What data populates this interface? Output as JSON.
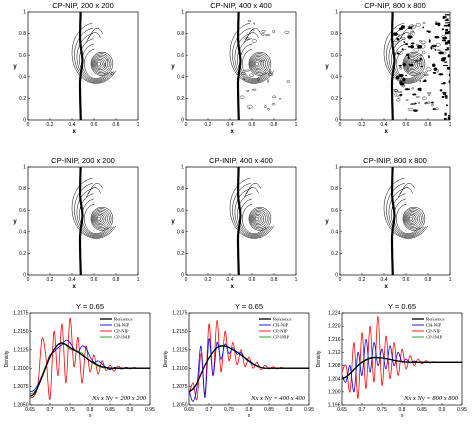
{
  "contour_panels": [
    {
      "title": "CP-NIP, 200 x 200",
      "noise": "low"
    },
    {
      "title": "CP-NIP, 400 x 400",
      "noise": "medium"
    },
    {
      "title": "CP-NIP, 800 x 800",
      "noise": "high"
    },
    {
      "title": "CP-INIP, 200 x 200",
      "noise": "none"
    },
    {
      "title": "CP-INIP, 400 x 400",
      "noise": "none"
    },
    {
      "title": "CP-INIP, 800 x 800",
      "noise": "none"
    }
  ],
  "contour_axes": {
    "xlabel": "x",
    "ylabel": "y",
    "xticks": [
      "0",
      "0.2",
      "0.4",
      "0.6",
      "0.8",
      "1"
    ],
    "yticks": [
      "0",
      "0.2",
      "0.4",
      "0.6",
      "0.8",
      "1"
    ]
  },
  "colors": {
    "reference": "#000000",
    "ch_nip": "#0000ff",
    "cp_nip": "#ff0000",
    "cp_inip": "#00aa00"
  },
  "chart_data": [
    {
      "type": "line",
      "title": "Y = 0.65",
      "xlabel": "x",
      "ylabel": "Density",
      "xlim": [
        0.65,
        0.95
      ],
      "ylim": [
        1.205,
        1.2175
      ],
      "xticks": [
        "0.65",
        "0.7",
        "0.75",
        "0.8",
        "0.85",
        "0.9",
        "0.95"
      ],
      "yticks": [
        "1.2050",
        "1.2075",
        "1.2100",
        "1.2125",
        "1.2150",
        "1.2175"
      ],
      "legend_position": "top-right",
      "annotation": "Nx x Ny = 200 x 200",
      "series": [
        {
          "name": "Reference",
          "key": "reference",
          "x": [
            0.65,
            0.66,
            0.67,
            0.68,
            0.69,
            0.7,
            0.71,
            0.72,
            0.73,
            0.74,
            0.75,
            0.76,
            0.77,
            0.78,
            0.79,
            0.8,
            0.81,
            0.82,
            0.83,
            0.84,
            0.85,
            0.86,
            0.87,
            0.88,
            0.89,
            0.9,
            0.91,
            0.92,
            0.93,
            0.94,
            0.95
          ],
          "y": [
            1.2062,
            1.2065,
            1.2075,
            1.2088,
            1.2102,
            1.2115,
            1.2125,
            1.2132,
            1.2134,
            1.2132,
            1.2128,
            1.2125,
            1.2122,
            1.2118,
            1.2114,
            1.211,
            1.2107,
            1.2104,
            1.2102,
            1.2101,
            1.21,
            1.21,
            1.21,
            1.21,
            1.21,
            1.21,
            1.21,
            1.21,
            1.21,
            1.21,
            1.21
          ]
        },
        {
          "name": "CH-NIP",
          "key": "ch_nip",
          "x": [
            0.65,
            0.66,
            0.67,
            0.68,
            0.69,
            0.7,
            0.71,
            0.72,
            0.73,
            0.74,
            0.75,
            0.76,
            0.77,
            0.78,
            0.79,
            0.8,
            0.81,
            0.82,
            0.83,
            0.84,
            0.85,
            0.86,
            0.87,
            0.88,
            0.89,
            0.9,
            0.91,
            0.92,
            0.93,
            0.94,
            0.95
          ],
          "y": [
            1.2068,
            1.207,
            1.2078,
            1.209,
            1.2104,
            1.2118,
            1.2122,
            1.2128,
            1.2132,
            1.2138,
            1.2135,
            1.2126,
            1.2122,
            1.213,
            1.2127,
            1.2116,
            1.2108,
            1.211,
            1.2106,
            1.2101,
            1.2098,
            1.2101,
            1.21,
            1.2099,
            1.2101,
            1.21,
            1.21,
            1.21,
            1.21,
            1.21,
            1.21
          ]
        },
        {
          "name": "CP-NIP",
          "key": "cp_nip",
          "x": [
            0.65,
            0.66,
            0.67,
            0.68,
            0.69,
            0.7,
            0.71,
            0.72,
            0.73,
            0.74,
            0.75,
            0.76,
            0.77,
            0.78,
            0.79,
            0.8,
            0.81,
            0.82,
            0.83,
            0.84,
            0.85,
            0.86,
            0.87,
            0.88,
            0.89,
            0.9,
            0.91,
            0.92,
            0.93,
            0.94,
            0.95
          ],
          "y": [
            1.206,
            1.2062,
            1.2078,
            1.214,
            1.2115,
            1.2058,
            1.215,
            1.209,
            1.216,
            1.208,
            1.2168,
            1.2102,
            1.2142,
            1.208,
            1.213,
            1.2095,
            1.2118,
            1.2092,
            1.211,
            1.2097,
            1.2104,
            1.2096,
            1.2103,
            1.2099,
            1.2101,
            1.2099,
            1.2101,
            1.21,
            1.21,
            1.21,
            1.21
          ]
        },
        {
          "name": "CP-INIP",
          "key": "cp_inip",
          "x": [
            0.65,
            0.66,
            0.67,
            0.68,
            0.69,
            0.7,
            0.71,
            0.72,
            0.73,
            0.74,
            0.75,
            0.76,
            0.77,
            0.78,
            0.79,
            0.8,
            0.81,
            0.82,
            0.83,
            0.84,
            0.85,
            0.86,
            0.87,
            0.88,
            0.89,
            0.9,
            0.91,
            0.92,
            0.93,
            0.94,
            0.95
          ],
          "y": [
            1.2065,
            1.2067,
            1.2076,
            1.209,
            1.2104,
            1.2116,
            1.2126,
            1.2132,
            1.2135,
            1.2131,
            1.2126,
            1.2124,
            1.2123,
            1.212,
            1.2115,
            1.211,
            1.2106,
            1.2103,
            1.2101,
            1.21,
            1.21,
            1.21,
            1.21,
            1.21,
            1.21,
            1.21,
            1.21,
            1.21,
            1.21,
            1.21,
            1.21
          ]
        }
      ]
    },
    {
      "type": "line",
      "title": "Y = 0.65",
      "xlabel": "x",
      "ylabel": "Density",
      "xlim": [
        0.65,
        0.95
      ],
      "ylim": [
        1.205,
        1.2175
      ],
      "xticks": [
        "0.65",
        "0.7",
        "0.75",
        "0.8",
        "0.85",
        "0.9",
        "0.95"
      ],
      "yticks": [
        "1.2050",
        "1.2075",
        "1.2100",
        "1.2125",
        "1.2150",
        "1.2175"
      ],
      "legend_position": "top-right",
      "annotation": "Nx x Ny = 400 x 400",
      "series": [
        {
          "name": "Reference",
          "key": "reference",
          "x": [
            0.65,
            0.66,
            0.67,
            0.68,
            0.69,
            0.7,
            0.71,
            0.72,
            0.73,
            0.74,
            0.75,
            0.76,
            0.77,
            0.78,
            0.79,
            0.8,
            0.81,
            0.82,
            0.83,
            0.84,
            0.85,
            0.86,
            0.87,
            0.88,
            0.89,
            0.9,
            0.91,
            0.92,
            0.93,
            0.94,
            0.95
          ],
          "y": [
            1.2068,
            1.2072,
            1.208,
            1.2092,
            1.2104,
            1.2114,
            1.2122,
            1.2128,
            1.213,
            1.213,
            1.2128,
            1.2125,
            1.2122,
            1.2118,
            1.2114,
            1.211,
            1.2106,
            1.2103,
            1.2101,
            1.21,
            1.21,
            1.21,
            1.21,
            1.21,
            1.21,
            1.21,
            1.21,
            1.21,
            1.21,
            1.21,
            1.21
          ]
        },
        {
          "name": "CH-NIP",
          "key": "ch_nip",
          "x": [
            0.65,
            0.66,
            0.67,
            0.68,
            0.69,
            0.7,
            0.71,
            0.72,
            0.73,
            0.74,
            0.75,
            0.76,
            0.77,
            0.78,
            0.79,
            0.8,
            0.81,
            0.82,
            0.83,
            0.84,
            0.85,
            0.86,
            0.87,
            0.88,
            0.89,
            0.9,
            0.91,
            0.92,
            0.93,
            0.94,
            0.95
          ],
          "y": [
            1.207,
            1.2055,
            1.2075,
            1.213,
            1.206,
            1.214,
            1.209,
            1.2135,
            1.2112,
            1.2133,
            1.212,
            1.2128,
            1.2119,
            1.2121,
            1.2113,
            1.2109,
            1.2105,
            1.2103,
            1.2101,
            1.21,
            1.21,
            1.21,
            1.21,
            1.21,
            1.21,
            1.21,
            1.21,
            1.21,
            1.21,
            1.21,
            1.21
          ]
        },
        {
          "name": "CP-NIP",
          "key": "cp_nip",
          "x": [
            0.65,
            0.66,
            0.67,
            0.68,
            0.69,
            0.7,
            0.71,
            0.72,
            0.73,
            0.74,
            0.75,
            0.76,
            0.77,
            0.78,
            0.79,
            0.8,
            0.81,
            0.82,
            0.83,
            0.84,
            0.85,
            0.86,
            0.87,
            0.88,
            0.89,
            0.9,
            0.91,
            0.92,
            0.93,
            0.94,
            0.95
          ],
          "y": [
            1.2062,
            1.208,
            1.2058,
            1.212,
            1.2065,
            1.216,
            1.209,
            1.2165,
            1.2095,
            1.215,
            1.211,
            1.2135,
            1.2105,
            1.2125,
            1.2102,
            1.2115,
            1.21,
            1.2108,
            1.2098,
            1.2104,
            1.2099,
            1.2102,
            1.2099,
            1.2101,
            1.21,
            1.21,
            1.21,
            1.21,
            1.21,
            1.21,
            1.21
          ]
        },
        {
          "name": "CP-INIP",
          "key": "cp_inip",
          "x": [
            0.65,
            0.66,
            0.67,
            0.68,
            0.69,
            0.7,
            0.71,
            0.72,
            0.73,
            0.74,
            0.75,
            0.76,
            0.77,
            0.78,
            0.79,
            0.8,
            0.81,
            0.82,
            0.83,
            0.84,
            0.85,
            0.86,
            0.87,
            0.88,
            0.89,
            0.9,
            0.91,
            0.92,
            0.93,
            0.94,
            0.95
          ],
          "y": [
            1.2068,
            1.2071,
            1.208,
            1.2092,
            1.2104,
            1.2114,
            1.2122,
            1.2128,
            1.2131,
            1.213,
            1.2128,
            1.2125,
            1.2122,
            1.2118,
            1.2114,
            1.211,
            1.2106,
            1.2103,
            1.2101,
            1.21,
            1.21,
            1.21,
            1.21,
            1.21,
            1.21,
            1.21,
            1.21,
            1.21,
            1.21,
            1.21,
            1.21
          ]
        }
      ]
    },
    {
      "type": "line",
      "title": "Y = 0.65",
      "xlabel": "x",
      "ylabel": "Density",
      "xlim": [
        0.65,
        0.95
      ],
      "ylim": [
        1.196,
        1.224
      ],
      "xticks": [
        "0.65",
        "0.7",
        "0.75",
        "0.8",
        "0.85",
        "0.9",
        "0.95"
      ],
      "yticks": [
        "1.196",
        "1.200",
        "1.204",
        "1.208",
        "1.212",
        "1.216",
        "1.220",
        "1.224"
      ],
      "legend_position": "top-right",
      "annotation": "Nx x Ny = 800 x 800",
      "series": [
        {
          "name": "Reference",
          "key": "reference",
          "x": [
            0.65,
            0.66,
            0.67,
            0.68,
            0.69,
            0.7,
            0.71,
            0.72,
            0.73,
            0.74,
            0.75,
            0.76,
            0.77,
            0.78,
            0.79,
            0.8,
            0.81,
            0.82,
            0.83,
            0.84,
            0.85,
            0.86,
            0.87,
            0.88,
            0.89,
            0.9,
            0.91,
            0.92,
            0.93,
            0.94,
            0.95
          ],
          "y": [
            1.204,
            1.2045,
            1.2055,
            1.2068,
            1.208,
            1.209,
            1.2097,
            1.2102,
            1.2104,
            1.2104,
            1.2103,
            1.2101,
            1.2099,
            1.2096,
            1.2094,
            1.2092,
            1.2091,
            1.209,
            1.209,
            1.209,
            1.209,
            1.209,
            1.209,
            1.209,
            1.209,
            1.209,
            1.209,
            1.209,
            1.209,
            1.209,
            1.209
          ]
        },
        {
          "name": "CH-NIP",
          "key": "ch_nip",
          "x": [
            0.65,
            0.66,
            0.67,
            0.68,
            0.69,
            0.7,
            0.71,
            0.72,
            0.73,
            0.74,
            0.75,
            0.76,
            0.77,
            0.78,
            0.79,
            0.8,
            0.81,
            0.82,
            0.83,
            0.84,
            0.85,
            0.86,
            0.87,
            0.88,
            0.89,
            0.9,
            0.91,
            0.92,
            0.93,
            0.94,
            0.95
          ],
          "y": [
            1.205,
            1.203,
            1.208,
            1.2,
            1.212,
            1.205,
            1.216,
            1.206,
            1.215,
            1.208,
            1.213,
            1.207,
            1.214,
            1.208,
            1.212,
            1.209,
            1.21,
            1.2088,
            1.2094,
            1.209,
            1.2091,
            1.209,
            1.209,
            1.209,
            1.209,
            1.209,
            1.209,
            1.209,
            1.209,
            1.209,
            1.209
          ]
        },
        {
          "name": "CP-NIP",
          "key": "cp_nip",
          "x": [
            0.65,
            0.66,
            0.67,
            0.68,
            0.69,
            0.7,
            0.71,
            0.72,
            0.73,
            0.74,
            0.75,
            0.76,
            0.77,
            0.78,
            0.79,
            0.8,
            0.81,
            0.82,
            0.83,
            0.84,
            0.85,
            0.86,
            0.87,
            0.88,
            0.89,
            0.9,
            0.91,
            0.92,
            0.93,
            0.94,
            0.95
          ],
          "y": [
            1.206,
            1.208,
            1.2,
            1.215,
            1.198,
            1.218,
            1.201,
            1.22,
            1.203,
            1.223,
            1.202,
            1.217,
            1.204,
            1.215,
            1.205,
            1.213,
            1.207,
            1.211,
            1.208,
            1.21,
            1.2085,
            1.2095,
            1.2088,
            1.2092,
            1.209,
            1.209,
            1.209,
            1.209,
            1.209,
            1.209,
            1.209
          ]
        },
        {
          "name": "CP-INIP",
          "key": "cp_inip",
          "x": [
            0.65,
            0.66,
            0.67,
            0.68,
            0.69,
            0.7,
            0.71,
            0.72,
            0.73,
            0.74,
            0.75,
            0.76,
            0.77,
            0.78,
            0.79,
            0.8,
            0.81,
            0.82,
            0.83,
            0.84,
            0.85,
            0.86,
            0.87,
            0.88,
            0.89,
            0.9,
            0.91,
            0.92,
            0.93,
            0.94,
            0.95
          ],
          "y": [
            1.2042,
            1.2047,
            1.2057,
            1.207,
            1.2082,
            1.2092,
            1.2099,
            1.2104,
            1.2106,
            1.2105,
            1.2103,
            1.2101,
            1.2099,
            1.2096,
            1.2094,
            1.2092,
            1.2091,
            1.209,
            1.209,
            1.209,
            1.209,
            1.209,
            1.209,
            1.209,
            1.209,
            1.209,
            1.209,
            1.209,
            1.209,
            1.209,
            1.209
          ]
        }
      ]
    }
  ]
}
